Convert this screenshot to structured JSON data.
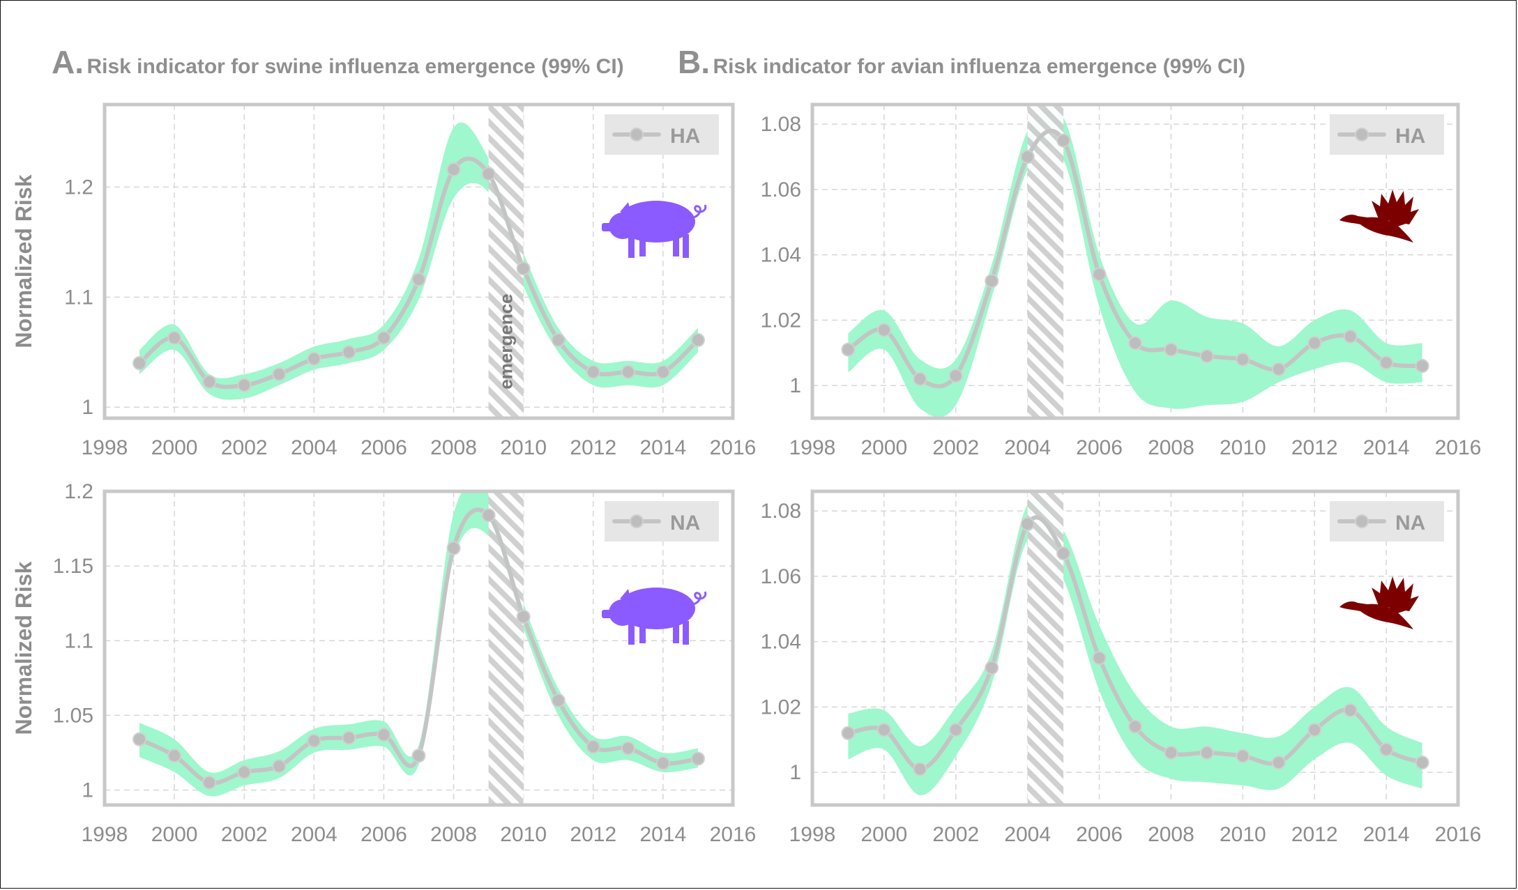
{
  "panel_titles": {
    "a": {
      "letter": "A.",
      "text": "Risk indicator for swine influenza emergence (99% CI)"
    },
    "b": {
      "letter": "B.",
      "text": "Risk indicator for avian influenza emergence (99% CI)"
    }
  },
  "colors": {
    "band": "#9ff7cd",
    "line": "#c4c4c4",
    "axis": "#c8c8c8",
    "tick_text": "#8c8c8c",
    "pig": "#8b5bff",
    "duck": "#7d0000",
    "legend_bg": "#e6e6e6"
  },
  "chart_data": [
    {
      "id": "swine-ha",
      "type": "line",
      "subject_icon": "pig-icon",
      "ylabel": "Normalized Risk",
      "legend": "HA",
      "legend_placement": "top-right",
      "grid": true,
      "xlim": [
        1998,
        2016
      ],
      "ylim": [
        0.99,
        1.275
      ],
      "xticks": [
        1998,
        2000,
        2002,
        2004,
        2006,
        2008,
        2010,
        2012,
        2014,
        2016
      ],
      "yticks": [
        1,
        1.1,
        1.2
      ],
      "ytick_labels": [
        "1",
        "1.1",
        "1.2"
      ],
      "emergence": {
        "start": 2009,
        "end": 2010,
        "label": "emergence"
      },
      "x": [
        1999,
        2000,
        2001,
        2002,
        2003,
        2004,
        2005,
        2006,
        2007,
        2008,
        2009,
        2010,
        2011,
        2012,
        2013,
        2014,
        2015
      ],
      "y": [
        1.04,
        1.063,
        1.023,
        1.02,
        1.03,
        1.044,
        1.05,
        1.063,
        1.116,
        1.216,
        1.212,
        1.126,
        1.061,
        1.032,
        1.032,
        1.032,
        1.061
      ],
      "lower": [
        1.03,
        1.052,
        1.012,
        1.008,
        1.02,
        1.034,
        1.04,
        1.052,
        1.098,
        1.19,
        1.195,
        1.11,
        1.05,
        1.02,
        1.02,
        1.02,
        1.05
      ],
      "upper": [
        1.052,
        1.075,
        1.03,
        1.03,
        1.04,
        1.055,
        1.062,
        1.075,
        1.135,
        1.254,
        1.226,
        1.14,
        1.072,
        1.042,
        1.042,
        1.042,
        1.072
      ]
    },
    {
      "id": "avian-ha",
      "type": "line",
      "subject_icon": "duck-icon",
      "ylabel": "",
      "legend": "HA",
      "legend_placement": "top-right",
      "grid": true,
      "xlim": [
        1998,
        2016
      ],
      "ylim": [
        0.99,
        1.086
      ],
      "xticks": [
        1998,
        2000,
        2002,
        2004,
        2006,
        2008,
        2010,
        2012,
        2014,
        2016
      ],
      "yticks": [
        1,
        1.02,
        1.04,
        1.06,
        1.08
      ],
      "ytick_labels": [
        "1",
        "1.02",
        "1.04",
        "1.06",
        "1.08"
      ],
      "emergence": {
        "start": 2004,
        "end": 2005,
        "label": ""
      },
      "x": [
        1999,
        2000,
        2001,
        2002,
        2003,
        2004,
        2005,
        2006,
        2007,
        2008,
        2009,
        2010,
        2011,
        2012,
        2013,
        2014,
        2015
      ],
      "y": [
        1.011,
        1.017,
        1.002,
        1.003,
        1.032,
        1.07,
        1.075,
        1.034,
        1.013,
        1.011,
        1.009,
        1.008,
        1.005,
        1.013,
        1.015,
        1.007,
        1.006
      ],
      "lower": [
        1.004,
        1.011,
        0.993,
        0.994,
        1.027,
        1.066,
        1.069,
        1.024,
        0.998,
        0.993,
        0.994,
        0.995,
        1.001,
        1.005,
        1.007,
        1.001,
        1.001
      ],
      "upper": [
        1.016,
        1.023,
        1.008,
        1.008,
        1.037,
        1.078,
        1.082,
        1.04,
        1.019,
        1.026,
        1.021,
        1.019,
        1.012,
        1.02,
        1.023,
        1.013,
        1.013
      ]
    },
    {
      "id": "swine-na",
      "type": "line",
      "subject_icon": "pig-icon",
      "ylabel": "Normalized Risk",
      "legend": "NA",
      "legend_placement": "top-right",
      "grid": true,
      "xlim": [
        1998,
        2016
      ],
      "ylim": [
        0.99,
        1.2
      ],
      "xticks": [
        1998,
        2000,
        2002,
        2004,
        2006,
        2008,
        2010,
        2012,
        2014,
        2016
      ],
      "yticks": [
        1,
        1.05,
        1.1,
        1.15,
        1.2
      ],
      "ytick_labels": [
        "1",
        "1.05",
        "1.1",
        "1.15",
        "1.2"
      ],
      "emergence": {
        "start": 2009,
        "end": 2010,
        "label": ""
      },
      "x": [
        1999,
        2000,
        2001,
        2002,
        2003,
        2004,
        2005,
        2006,
        2007,
        2008,
        2009,
        2010,
        2011,
        2012,
        2013,
        2014,
        2015
      ],
      "y": [
        1.034,
        1.023,
        1.005,
        1.012,
        1.016,
        1.033,
        1.035,
        1.037,
        1.023,
        1.162,
        1.184,
        1.116,
        1.06,
        1.029,
        1.028,
        1.018,
        1.021
      ],
      "lower": [
        1.022,
        1.012,
        0.996,
        1.003,
        1.008,
        1.025,
        1.027,
        1.029,
        1.017,
        1.155,
        1.17,
        1.108,
        1.05,
        1.02,
        1.02,
        1.012,
        1.015
      ],
      "upper": [
        1.045,
        1.034,
        1.012,
        1.02,
        1.026,
        1.041,
        1.044,
        1.046,
        1.03,
        1.185,
        1.198,
        1.125,
        1.068,
        1.036,
        1.036,
        1.025,
        1.028
      ]
    },
    {
      "id": "avian-na",
      "type": "line",
      "subject_icon": "duck-icon",
      "ylabel": "",
      "legend": "NA",
      "legend_placement": "top-right",
      "grid": true,
      "xlim": [
        1998,
        2016
      ],
      "ylim": [
        0.99,
        1.086
      ],
      "xticks": [
        1998,
        2000,
        2002,
        2004,
        2006,
        2008,
        2010,
        2012,
        2014,
        2016
      ],
      "yticks": [
        1,
        1.02,
        1.04,
        1.06,
        1.08
      ],
      "ytick_labels": [
        "1",
        "1.02",
        "1.04",
        "1.06",
        "1.08"
      ],
      "emergence": {
        "start": 2004,
        "end": 2005,
        "label": ""
      },
      "x": [
        1999,
        2000,
        2001,
        2002,
        2003,
        2004,
        2005,
        2006,
        2007,
        2008,
        2009,
        2010,
        2011,
        2012,
        2013,
        2014,
        2015
      ],
      "y": [
        1.012,
        1.013,
        1.001,
        1.013,
        1.032,
        1.076,
        1.067,
        1.035,
        1.014,
        1.006,
        1.006,
        1.005,
        1.003,
        1.013,
        1.019,
        1.007,
        1.003
      ],
      "lower": [
        1.004,
        1.007,
        0.993,
        1.005,
        1.027,
        1.071,
        1.059,
        1.025,
        1.004,
        0.998,
        0.997,
        0.996,
        0.995,
        1.004,
        1.009,
        0.999,
        0.995
      ],
      "upper": [
        1.018,
        1.019,
        1.008,
        1.02,
        1.037,
        1.082,
        1.074,
        1.045,
        1.024,
        1.014,
        1.014,
        1.012,
        1.011,
        1.02,
        1.026,
        1.014,
        1.009
      ]
    }
  ]
}
